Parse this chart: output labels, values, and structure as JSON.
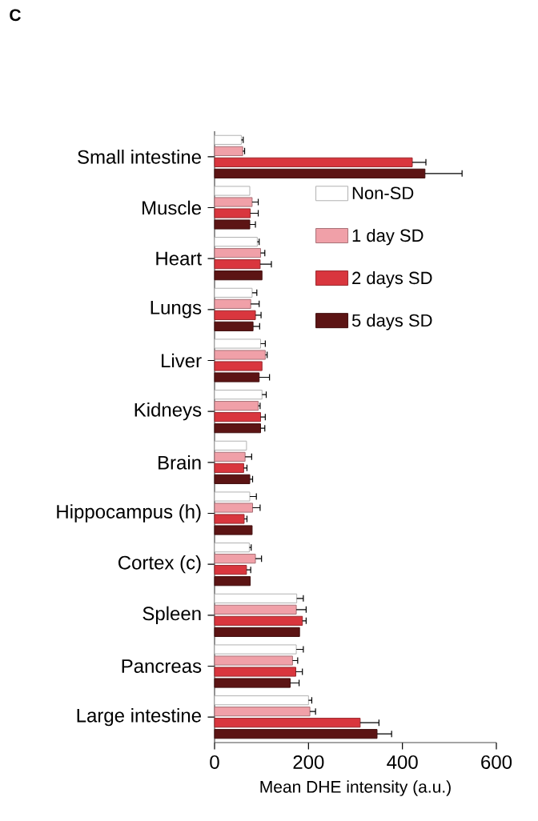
{
  "chart_data": {
    "type": "bar",
    "orientation": "horizontal",
    "xlabel": "Mean DHE intensity (a.u.)",
    "annotations": [
      "C"
    ],
    "categories": [
      "Small intestine",
      "Muscle",
      "Heart",
      "Lungs",
      "Liver",
      "Kidneys",
      "Brain",
      "Hippocampus (h)",
      "Cortex (c)",
      "Spleen",
      "Pancreas",
      "Large intestine"
    ],
    "series": [
      {
        "name": "Non-SD",
        "color": "#ffffff",
        "values": [
          57,
          75,
          91,
          80,
          98,
          101,
          68,
          75,
          74,
          175,
          174,
          200
        ],
        "errors": [
          4,
          null,
          4,
          10,
          10,
          9,
          null,
          14,
          4,
          14,
          15,
          7
        ]
      },
      {
        "name": "1 day SD",
        "color": "#f0a0a8",
        "values": [
          60,
          80,
          98,
          77,
          108,
          93,
          65,
          81,
          87,
          174,
          166,
          203
        ],
        "errors": [
          4,
          13,
          9,
          18,
          4,
          4,
          14,
          16,
          13,
          21,
          11,
          12
        ]
      },
      {
        "name": "2 days SD",
        "color": "#d9363e",
        "values": [
          421,
          76,
          97,
          87,
          101,
          98,
          62,
          63,
          68,
          187,
          173,
          310
        ],
        "errors": [
          29,
          17,
          24,
          12,
          null,
          10,
          7,
          6,
          9,
          8,
          14,
          40
        ]
      },
      {
        "name": "5 days SD",
        "color": "#5c1414",
        "values": [
          448,
          75,
          101,
          82,
          95,
          98,
          75,
          80,
          76,
          181,
          161,
          346
        ],
        "errors": [
          79,
          12,
          null,
          14,
          22,
          9,
          6,
          null,
          null,
          null,
          19,
          31
        ]
      }
    ],
    "xlim": [
      0,
      600
    ],
    "xticks": [
      0,
      200,
      400,
      600
    ],
    "legend": "right",
    "grid": false
  }
}
